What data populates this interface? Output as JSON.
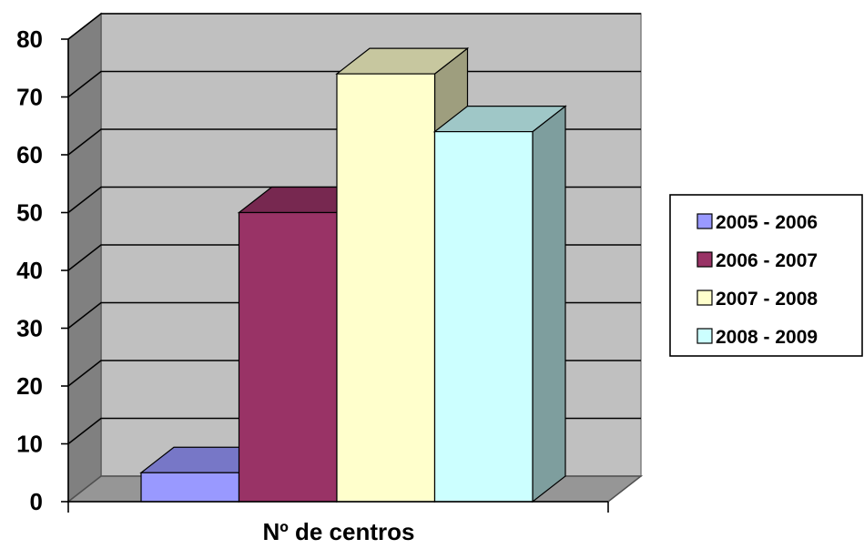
{
  "chart_data": {
    "type": "bar",
    "categories": [
      "Nº de centros"
    ],
    "xlabel": "Nº de centros",
    "ylabel": "",
    "title": "",
    "ylim": [
      0,
      80
    ],
    "yticks": [
      0,
      10,
      20,
      30,
      40,
      50,
      60,
      70,
      80
    ],
    "grid": true,
    "three_d": true,
    "legend_position": "right",
    "series": [
      {
        "name": "2005 - 2006",
        "values": [
          5
        ],
        "color": "#9999FF"
      },
      {
        "name": "2006 - 2007",
        "values": [
          50
        ],
        "color": "#993366"
      },
      {
        "name": "2007 - 2008",
        "values": [
          74
        ],
        "color": "#FFFFCC"
      },
      {
        "name": "2008 - 2009",
        "values": [
          64
        ],
        "color": "#CCFFFF"
      }
    ],
    "wall_color": "#C0C0C0",
    "floor_color": "#969696"
  }
}
